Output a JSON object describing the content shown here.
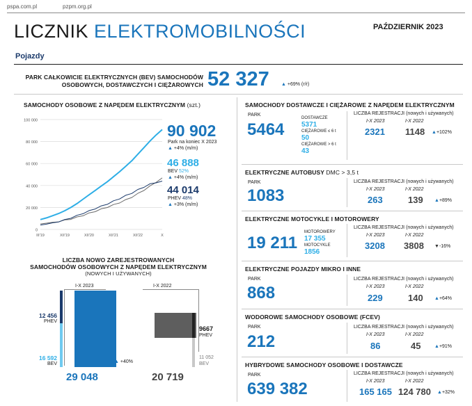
{
  "top": {
    "link1": "pspa.com.pl",
    "link2": "pzpm.org.pl",
    "title_word1": "LICZNIK",
    "title_word2": "ELEKTROMOBILNOŚCI",
    "month": "PAŹDZIERNIK 2023",
    "section": "Pojazdy"
  },
  "bev_total": {
    "label_line1": "PARK CAŁKOWICIE ELEKTRYCZNYCH (BEV) SAMOCHODÓW",
    "label_line2": "OSOBOWYCH, DOSTAWCZYCH I CIĘŻAROWYCH",
    "value": "52 327",
    "change": "+69% (r/r)"
  },
  "cars": {
    "title": "SAMOCHODY OSOBOWE Z NAPĘDEM ELEKTRYCZNYM",
    "unit": "(szt.)",
    "total": "90 902",
    "total_caption": "Park na koniec X 2023",
    "total_change": "+4% (m/m)",
    "bev_value": "46 888",
    "bev_label": "BEV",
    "bev_pct": "52%",
    "bev_change": "+4% (m/m)",
    "phev_value": "44 014",
    "phev_label": "PHEV",
    "phev_pct": "48%",
    "phev_change": "+3% (m/m)"
  },
  "chart_data": [
    {
      "type": "line",
      "ylim": [
        0,
        100000
      ],
      "yticks": [
        "0",
        "20 000",
        "40 000",
        "60 000",
        "80 000",
        "100 000"
      ],
      "ytick_values": [
        0,
        20000,
        40000,
        60000,
        80000,
        100000
      ],
      "xticks": [
        "III'19",
        "XII'19",
        "XII'20",
        "XII'21",
        "XII'22",
        "X"
      ],
      "x": [
        0,
        1,
        2,
        3,
        4,
        5,
        6,
        7,
        8,
        9,
        10,
        11,
        12,
        13,
        14,
        15,
        16,
        17,
        18,
        19,
        20
      ],
      "series": [
        {
          "values": [
            9000,
            10500,
            12500,
            14500,
            17000,
            20000,
            23500,
            27500,
            31500,
            35500,
            39500,
            43500,
            48000,
            52500,
            57500,
            62500,
            68500,
            74500,
            80500,
            86000,
            90902
          ]
        },
        {
          "values": [
            5000,
            5700,
            6500,
            7300,
            8300,
            9500,
            11000,
            12800,
            14700,
            16500,
            18400,
            20300,
            22300,
            24400,
            26800,
            29400,
            32500,
            35800,
            39300,
            43200,
            46888
          ]
        },
        {
          "values": [
            4000,
            4800,
            6000,
            7200,
            8700,
            10500,
            12500,
            14700,
            16800,
            19000,
            21100,
            23200,
            25700,
            28100,
            30700,
            33100,
            36000,
            38700,
            41200,
            42800,
            44014
          ]
        }
      ]
    },
    {
      "type": "bar",
      "title": "LICZBA NOWO ZAREJESTROWANYCH SAMOCHODÓW OSOBOWYCH Z NAPĘDEM ELEKTRYCZNYM (NOWYCH I UŻYWANYCH)",
      "categories": [
        "I-X 2023",
        "I-X 2022"
      ],
      "series": [
        {
          "name": "BEV",
          "values": [
            16592,
            11052
          ]
        },
        {
          "name": "PHEV",
          "values": [
            12456,
            9667
          ]
        }
      ],
      "totals": [
        29048,
        20719
      ],
      "change": "+40%"
    }
  ],
  "reg": {
    "title_line1": "LICZBA NOWO ZAREJESTROWANYCH",
    "title_line2": "SAMOCHODÓW OSOBOWYCH Z NAPĘDEM ELEKTRYCZNYM",
    "title_line3": "(NOWYCH I UŻYWANYCH)",
    "y2023_label": "I-X 2023",
    "y2022_label": "I-X 2022",
    "phev_2023": "12 456",
    "bev_2023": "16 592",
    "total_2023": "29 048",
    "phev_2022": "9667",
    "bev_2022": "11 052",
    "total_2022": "20 719",
    "phev_text": "PHEV",
    "bev_text": "BEV",
    "change": "+40%"
  },
  "right": {
    "park_label": "PARK",
    "reg_label": "LICZBA REJESTRACJI",
    "reg_sub": "(nowych i używanych)",
    "y2023": "I-X 2023",
    "y2022": "I-X 2022",
    "vans": {
      "title": "SAMOCHODY DOSTAWCZE I CIĘŻAROWE Z NAPĘDEM ELEKTRYCZNYM",
      "park": "5464",
      "sub1_label": "DOSTAWCZE",
      "sub1_value": "5371",
      "sub2_label": "CIĘŻAROWE ≤ 6 t",
      "sub2_value": "50",
      "sub3_label": "CIĘŻAROWE > 6 t",
      "sub3_value": "43",
      "reg_2023": "2321",
      "reg_2022": "1148",
      "change": "+102%"
    },
    "buses": {
      "title": "ELEKTRYCZNE AUTOBUSY",
      "title_suffix": "DMC > 3,5 t",
      "park": "1083",
      "reg_2023": "263",
      "reg_2022": "139",
      "change": "+89%"
    },
    "moto": {
      "title": "ELEKTRYCZNE MOTOCYKLE I MOTOROWERY",
      "park": "19 211",
      "sub1_label": "MOTOROWERY",
      "sub1_value": "17 355",
      "sub2_label": "MOTOCYKLE",
      "sub2_value": "1856",
      "reg_2023": "3208",
      "reg_2022": "3808",
      "change": "-16%"
    },
    "micro": {
      "title": "ELEKTRYCZNE POJAZDY MIKRO I INNE",
      "park": "868",
      "reg_2023": "229",
      "reg_2022": "140",
      "change": "+64%"
    },
    "fcev": {
      "title": "WODOROWE SAMOCHODY OSOBOWE (FCEV)",
      "park": "212",
      "reg_2023": "86",
      "reg_2022": "45",
      "change": "+91%"
    },
    "hybrid": {
      "title": "HYBRYDOWE SAMOCHODY OSOBOWE I DOSTAWCZE",
      "park": "639 382",
      "reg_2023": "165 165",
      "reg_2022": "124 780",
      "change": "+32%"
    }
  },
  "colors": {
    "accent": "#1a75bb",
    "light_blue": "#2eaee6",
    "navy": "#1b3a6b",
    "dark_grey": "#555555"
  }
}
